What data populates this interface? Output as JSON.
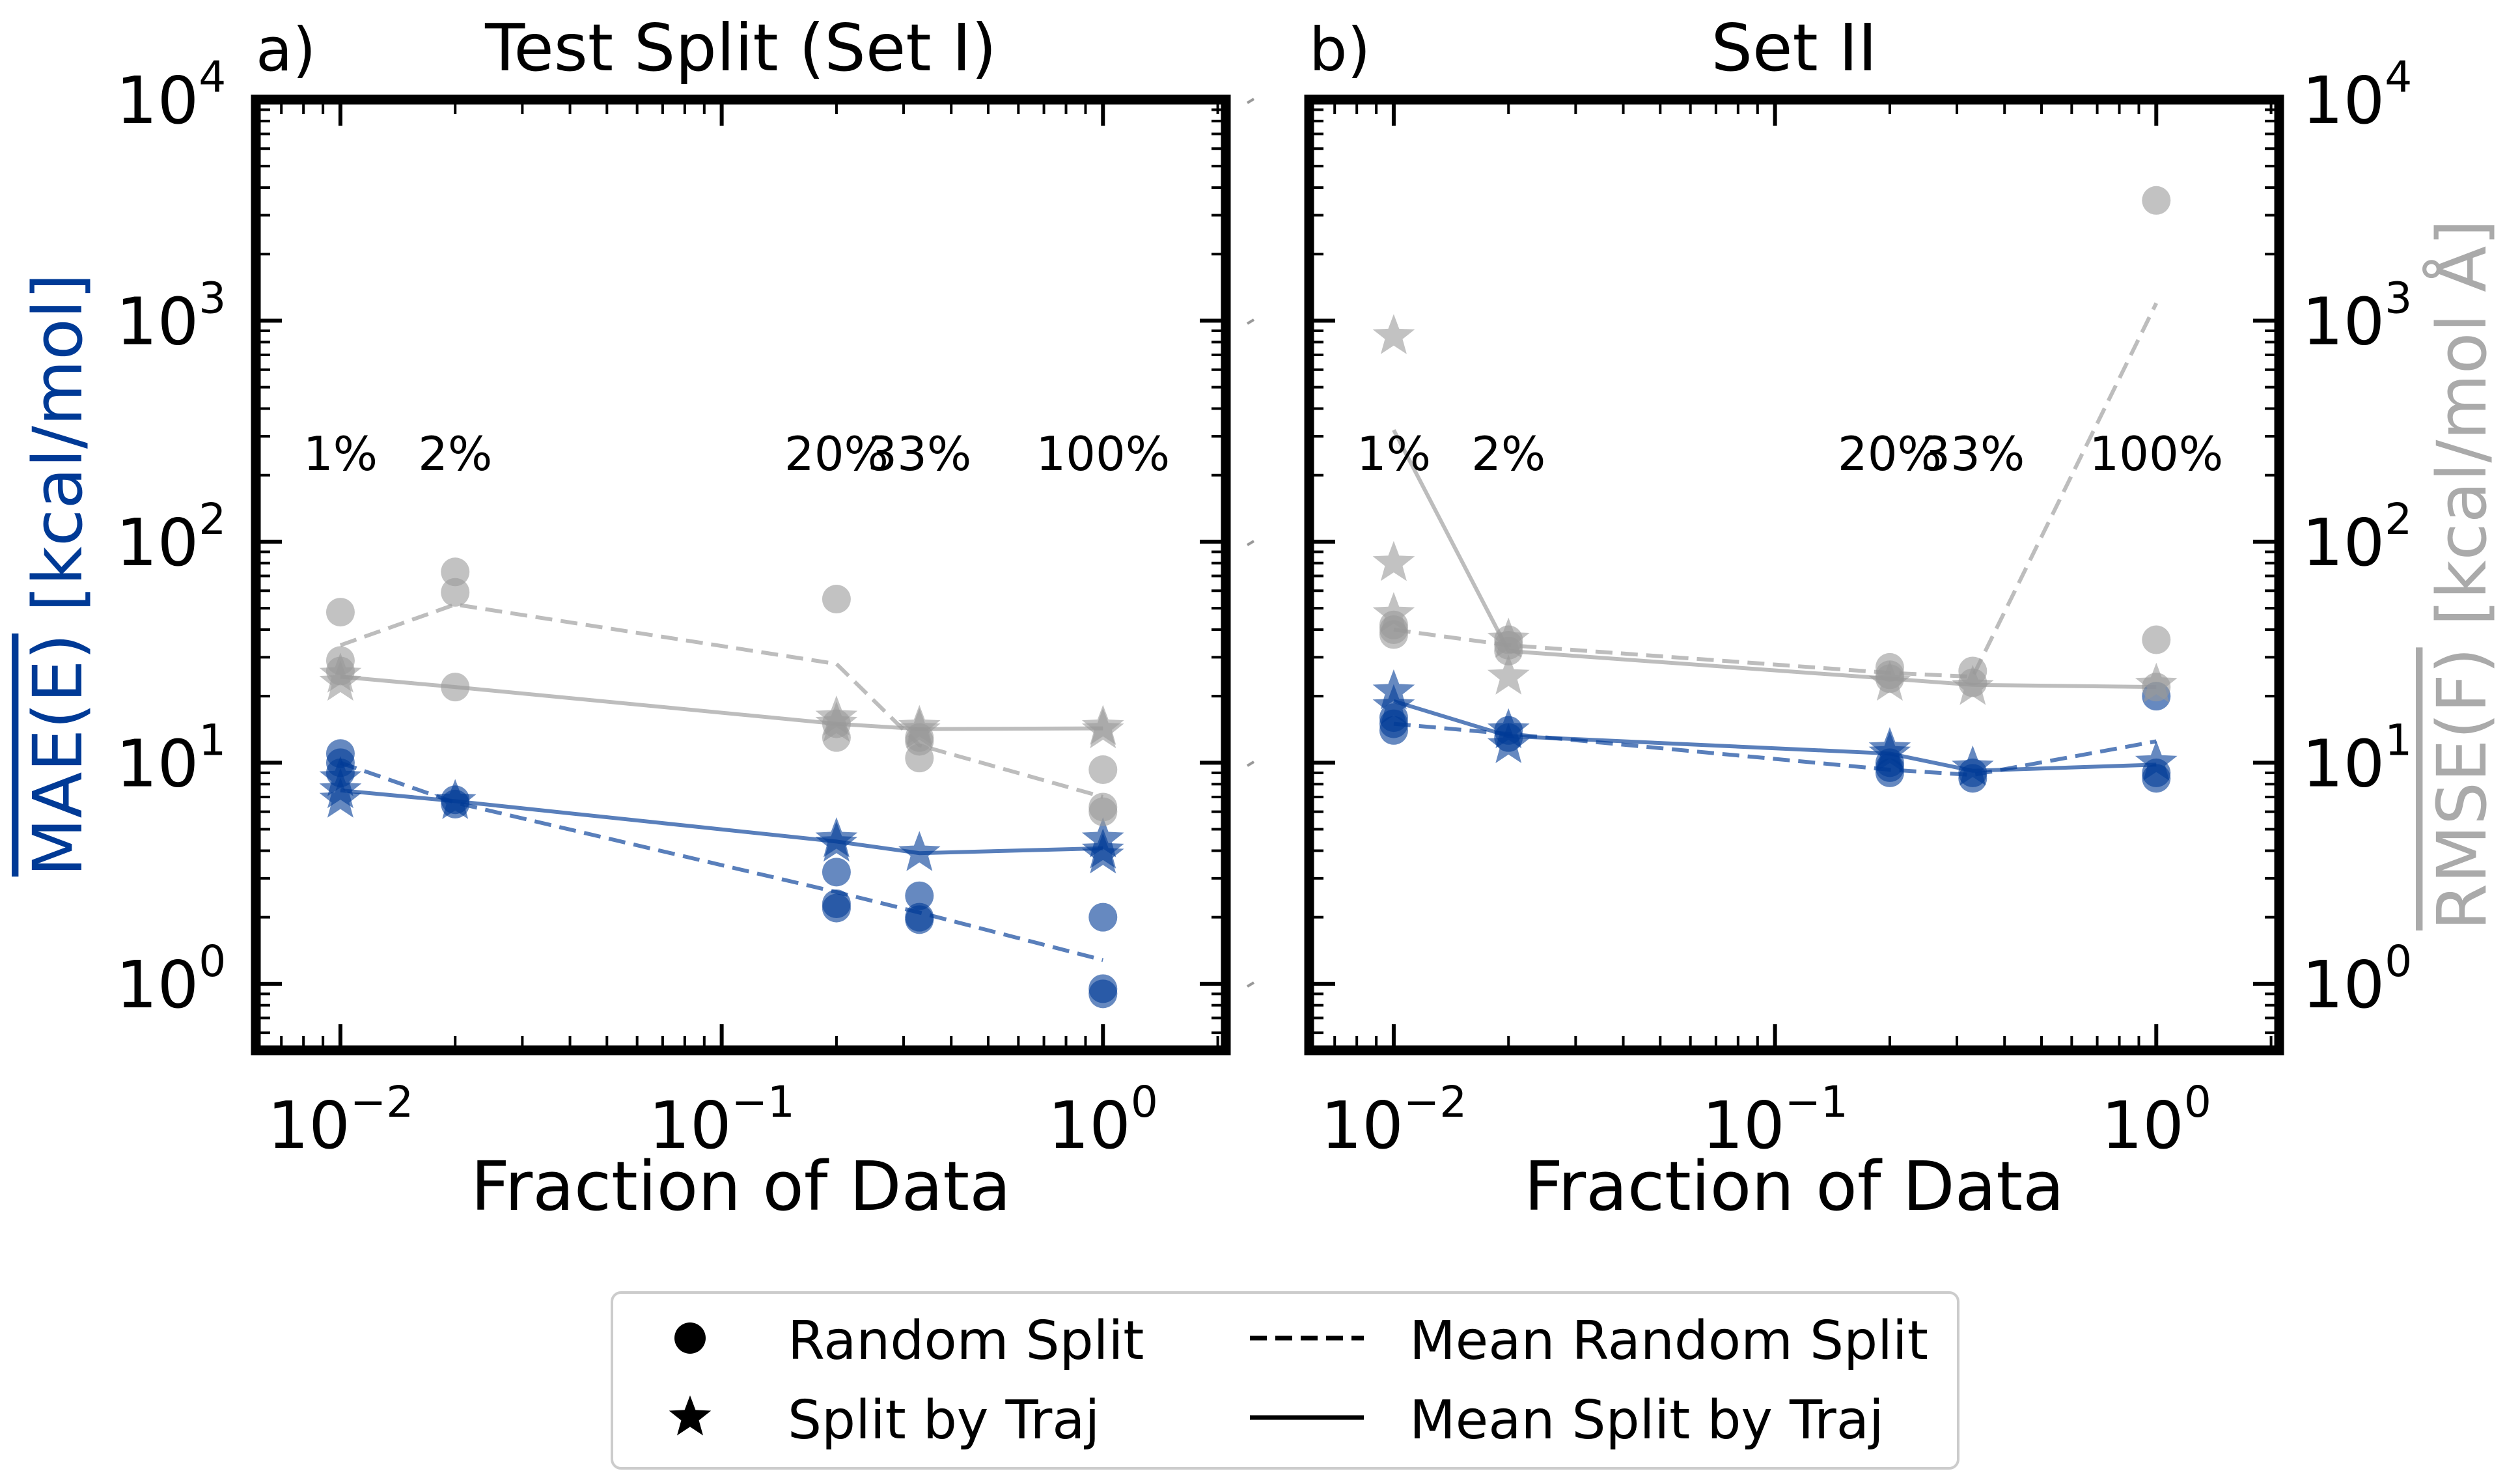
{
  "chart_data": [
    {
      "type": "scatter",
      "panel_label": "a)",
      "title": "Test Split (Set I)",
      "xlabel": "Fraction of Data",
      "ylabel_left": "MAE(E) [kcal/mol]",
      "ylabel_left_overlined": "MAE(E)",
      "ylabel_left_unit": " [kcal/mol]",
      "x_scale": "log",
      "y_scale": "log",
      "xlim": [
        0.006,
        2.1
      ],
      "ylim": [
        0.5,
        10000
      ],
      "x_ticks": [
        {
          "value": 0.01,
          "base": "10",
          "exp": "−2"
        },
        {
          "value": 0.1,
          "base": "10",
          "exp": "−1"
        },
        {
          "value": 1,
          "base": "10",
          "exp": "0"
        }
      ],
      "y_ticks": [
        {
          "value": 1,
          "base": "10",
          "exp": "0"
        },
        {
          "value": 10,
          "base": "10",
          "exp": "1"
        },
        {
          "value": 100,
          "base": "10",
          "exp": "2"
        },
        {
          "value": 1000,
          "base": "10",
          "exp": "3"
        },
        {
          "value": 10000,
          "base": "10",
          "exp": "4"
        }
      ],
      "percent_labels": [
        {
          "x": 0.01,
          "text": "1%"
        },
        {
          "x": 0.02,
          "text": "2%"
        },
        {
          "x": 0.2,
          "text": "20%"
        },
        {
          "x": 0.33,
          "text": "33%"
        },
        {
          "x": 1.0,
          "text": "100%"
        }
      ],
      "series": [
        {
          "name": "MAE(E) Random Split",
          "metric": "energy",
          "marker": "circle",
          "points": [
            [
              0.01,
              11.0
            ],
            [
              0.01,
              10.0
            ],
            [
              0.01,
              9.0
            ],
            [
              0.02,
              6.8
            ],
            [
              0.02,
              6.5
            ],
            [
              0.2,
              3.2
            ],
            [
              0.2,
              2.3
            ],
            [
              0.2,
              2.2
            ],
            [
              0.33,
              2.5
            ],
            [
              0.33,
              2.0
            ],
            [
              0.33,
              1.95
            ],
            [
              1.0,
              2.0
            ],
            [
              1.0,
              0.95
            ],
            [
              1.0,
              0.9
            ]
          ]
        },
        {
          "name": "MAE(E) Split by Traj",
          "metric": "energy",
          "marker": "star",
          "points": [
            [
              0.01,
              8.5
            ],
            [
              0.01,
              7.5
            ],
            [
              0.01,
              6.8
            ],
            [
              0.02,
              6.7
            ],
            [
              0.2,
              4.5
            ],
            [
              0.2,
              4.3
            ],
            [
              0.33,
              3.9
            ],
            [
              1.0,
              4.5
            ],
            [
              1.0,
              4.0
            ],
            [
              1.0,
              3.8
            ]
          ]
        },
        {
          "name": "MAE(E) Mean Random Split",
          "metric": "energy",
          "line": "dashed",
          "points": [
            [
              0.01,
              10.0
            ],
            [
              0.02,
              6.6
            ],
            [
              0.2,
              2.6
            ],
            [
              0.33,
              2.1
            ],
            [
              1.0,
              1.28
            ]
          ]
        },
        {
          "name": "MAE(E) Mean Split by Traj",
          "metric": "energy",
          "line": "solid",
          "points": [
            [
              0.01,
              7.5
            ],
            [
              0.02,
              6.7
            ],
            [
              0.2,
              4.4
            ],
            [
              0.33,
              3.9
            ],
            [
              1.0,
              4.1
            ]
          ]
        },
        {
          "name": "RMSE(F) Random Split",
          "metric": "force",
          "marker": "circle",
          "points": [
            [
              0.01,
              48.0
            ],
            [
              0.01,
              29.0
            ],
            [
              0.01,
              26.0
            ],
            [
              0.02,
              73.0
            ],
            [
              0.02,
              59.0
            ],
            [
              0.02,
              22.0
            ],
            [
              0.2,
              55.0
            ],
            [
              0.2,
              15.0
            ],
            [
              0.2,
              13.0
            ],
            [
              0.33,
              13.0
            ],
            [
              0.33,
              12.5
            ],
            [
              0.33,
              10.5
            ],
            [
              1.0,
              9.3
            ],
            [
              1.0,
              6.3
            ],
            [
              1.0,
              6.0
            ]
          ]
        },
        {
          "name": "RMSE(F) Split by Traj",
          "metric": "force",
          "marker": "star",
          "points": [
            [
              0.01,
              25.0
            ],
            [
              0.01,
              23.0
            ],
            [
              0.2,
              16.0
            ],
            [
              0.2,
              15.0
            ],
            [
              0.33,
              14.5
            ],
            [
              0.33,
              14.0
            ],
            [
              1.0,
              14.5
            ],
            [
              1.0,
              14.0
            ]
          ]
        },
        {
          "name": "RMSE(F) Mean Random Split",
          "metric": "force",
          "line": "dashed",
          "points": [
            [
              0.01,
              34.0
            ],
            [
              0.02,
              52.0
            ],
            [
              0.2,
              28.0
            ],
            [
              0.33,
              12.0
            ],
            [
              1.0,
              7.0
            ]
          ]
        },
        {
          "name": "RMSE(F) Mean Split by Traj",
          "metric": "force",
          "line": "solid",
          "points": [
            [
              0.01,
              24.5
            ],
            [
              0.02,
              22.0
            ],
            [
              0.2,
              15.0
            ],
            [
              0.33,
              14.2
            ],
            [
              1.0,
              14.3
            ]
          ]
        }
      ]
    },
    {
      "type": "scatter",
      "panel_label": "b)",
      "title": "Set II",
      "xlabel": "Fraction of Data",
      "ylabel_right": "RMSE(F) [kcal/mol Å]",
      "ylabel_right_overlined": "RMSE(F)",
      "ylabel_right_unit": " [kcal/mol Å]",
      "x_scale": "log",
      "y_scale": "log",
      "xlim": [
        0.006,
        2.1
      ],
      "ylim": [
        0.5,
        10000
      ],
      "x_ticks": [
        {
          "value": 0.01,
          "base": "10",
          "exp": "−2"
        },
        {
          "value": 0.1,
          "base": "10",
          "exp": "−1"
        },
        {
          "value": 1,
          "base": "10",
          "exp": "0"
        }
      ],
      "y_ticks": [
        {
          "value": 1,
          "base": "10",
          "exp": "0"
        },
        {
          "value": 10,
          "base": "10",
          "exp": "1"
        },
        {
          "value": 100,
          "base": "10",
          "exp": "2"
        },
        {
          "value": 1000,
          "base": "10",
          "exp": "3"
        },
        {
          "value": 10000,
          "base": "10",
          "exp": "4"
        }
      ],
      "percent_labels": [
        {
          "x": 0.01,
          "text": "1%"
        },
        {
          "x": 0.02,
          "text": "2%"
        },
        {
          "x": 0.2,
          "text": "20%"
        },
        {
          "x": 0.33,
          "text": "33%"
        },
        {
          "x": 1.0,
          "text": "100%"
        }
      ],
      "series": [
        {
          "name": "MAE(E) Random Split",
          "metric": "energy",
          "marker": "circle",
          "points": [
            [
              0.01,
              16.0
            ],
            [
              0.01,
              15.0
            ],
            [
              0.01,
              14.0
            ],
            [
              0.02,
              14.0
            ],
            [
              0.02,
              13.0
            ],
            [
              0.2,
              10.0
            ],
            [
              0.2,
              9.5
            ],
            [
              0.2,
              9.0
            ],
            [
              0.33,
              9.0
            ],
            [
              0.33,
              8.5
            ],
            [
              1.0,
              20.0
            ],
            [
              1.0,
              9.0
            ],
            [
              1.0,
              8.5
            ]
          ]
        },
        {
          "name": "MAE(E) Split by Traj",
          "metric": "energy",
          "marker": "star",
          "points": [
            [
              0.01,
              21.0
            ],
            [
              0.01,
              18.0
            ],
            [
              0.02,
              14.0
            ],
            [
              0.02,
              12.0
            ],
            [
              0.2,
              11.5
            ],
            [
              0.2,
              11.0
            ],
            [
              0.33,
              9.5
            ],
            [
              1.0,
              10.0
            ]
          ]
        },
        {
          "name": "MAE(E) Mean Random Split",
          "metric": "energy",
          "line": "dashed",
          "points": [
            [
              0.01,
              15.0
            ],
            [
              0.02,
              13.5
            ],
            [
              0.2,
              9.3
            ],
            [
              0.33,
              8.8
            ],
            [
              1.0,
              12.5
            ]
          ]
        },
        {
          "name": "MAE(E) Mean Split by Traj",
          "metric": "energy",
          "line": "solid",
          "points": [
            [
              0.01,
              19.0
            ],
            [
              0.02,
              13.2
            ],
            [
              0.2,
              11.0
            ],
            [
              0.33,
              9.2
            ],
            [
              1.0,
              9.8
            ]
          ]
        },
        {
          "name": "RMSE(F) Random Split",
          "metric": "force",
          "marker": "circle",
          "points": [
            [
              0.01,
              42.0
            ],
            [
              0.01,
              40.0
            ],
            [
              0.01,
              38.0
            ],
            [
              0.02,
              36.0
            ],
            [
              0.02,
              34.0
            ],
            [
              0.02,
              32.0
            ],
            [
              0.2,
              27.0
            ],
            [
              0.2,
              25.0
            ],
            [
              0.2,
              24.0
            ],
            [
              0.33,
              26.0
            ],
            [
              0.33,
              23.0
            ],
            [
              1.0,
              3500.0
            ],
            [
              1.0,
              36.0
            ],
            [
              1.0,
              22.0
            ]
          ]
        },
        {
          "name": "RMSE(F) Split by Traj",
          "metric": "force",
          "marker": "star",
          "points": [
            [
              0.01,
              850.0
            ],
            [
              0.01,
              80.0
            ],
            [
              0.01,
              47.0
            ],
            [
              0.02,
              36.0
            ],
            [
              0.02,
              24.5
            ],
            [
              0.2,
              23.0
            ],
            [
              0.33,
              22.0
            ],
            [
              1.0,
              22.5
            ]
          ]
        },
        {
          "name": "RMSE(F) Mean Random Split",
          "metric": "force",
          "line": "dashed",
          "points": [
            [
              0.01,
              40.0
            ],
            [
              0.02,
              34.0
            ],
            [
              0.2,
              25.5
            ],
            [
              0.33,
              24.5
            ],
            [
              1.0,
              1200.0
            ]
          ]
        },
        {
          "name": "RMSE(F) Mean Split by Traj",
          "metric": "force",
          "line": "solid",
          "points": [
            [
              0.01,
              320.0
            ],
            [
              0.02,
              32.0
            ],
            [
              0.2,
              24.0
            ],
            [
              0.33,
              22.5
            ],
            [
              1.0,
              22.0
            ]
          ]
        }
      ]
    }
  ],
  "colors": {
    "energy": "#003a96",
    "force": "#999999",
    "axis": "#000000",
    "legend_border": "#cccccc"
  },
  "legend": {
    "placement": "bottom-center",
    "items": [
      {
        "label": "Random Split",
        "symbol": "circle"
      },
      {
        "label": "Split by Traj",
        "symbol": "star"
      },
      {
        "label": "Mean Random Split",
        "symbol": "dashed-line"
      },
      {
        "label": "Mean Split by Traj",
        "symbol": "solid-line"
      }
    ]
  }
}
